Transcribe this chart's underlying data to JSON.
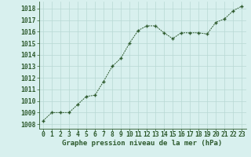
{
  "x": [
    0,
    1,
    2,
    3,
    4,
    5,
    6,
    7,
    8,
    9,
    10,
    11,
    12,
    13,
    14,
    15,
    16,
    17,
    18,
    19,
    20,
    21,
    22,
    23
  ],
  "y": [
    1008.3,
    1009.0,
    1009.0,
    1009.0,
    1009.7,
    1010.4,
    1010.5,
    1011.7,
    1013.0,
    1013.7,
    1015.0,
    1016.1,
    1016.5,
    1016.5,
    1015.9,
    1015.4,
    1015.9,
    1015.9,
    1015.9,
    1015.8,
    1016.8,
    1017.1,
    1017.8,
    1018.2
  ],
  "line_color": "#2d5a2d",
  "marker_color": "#2d5a2d",
  "bg_color": "#d8f0ee",
  "grid_color": "#b8d8d4",
  "ylabel_ticks": [
    1008,
    1009,
    1010,
    1011,
    1012,
    1013,
    1014,
    1015,
    1016,
    1017,
    1018
  ],
  "xlabel": "Graphe pression niveau de la mer (hPa)",
  "ylim": [
    1007.6,
    1018.6
  ],
  "xlim": [
    -0.5,
    23.5
  ],
  "xlabel_fontsize": 6.5,
  "tick_fontsize": 5.8
}
